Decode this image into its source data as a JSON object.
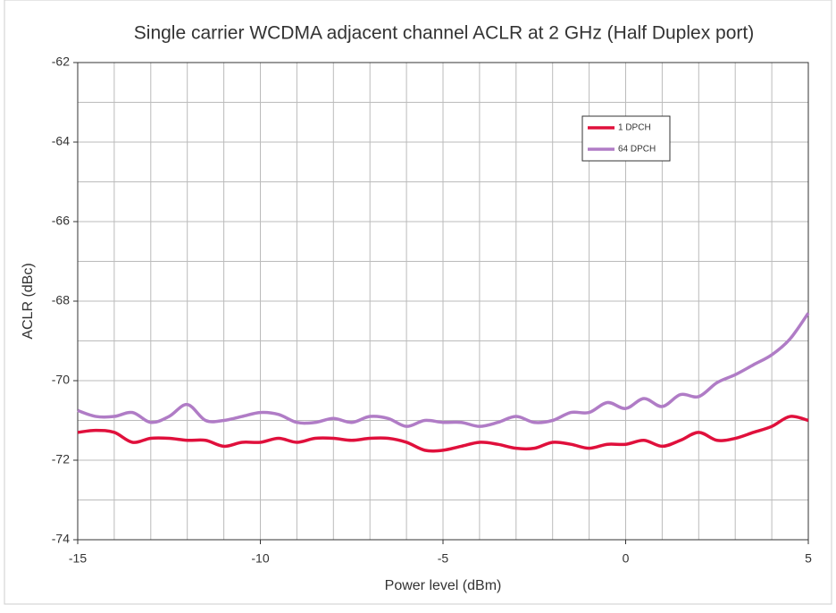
{
  "chart_data": {
    "type": "line",
    "title": "Single carrier WCDMA adjacent channel ACLR at 2 GHz (Half Duplex port)",
    "xlabel": "Power level (dBm)",
    "ylabel": "ACLR (dBc)",
    "x": [
      -15,
      -14.5,
      -14,
      -13.5,
      -13,
      -12.5,
      -12,
      -11.5,
      -11,
      -10.5,
      -10,
      -9.5,
      -9,
      -8.5,
      -8,
      -7.5,
      -7,
      -6.5,
      -6,
      -5.5,
      -5,
      -4.5,
      -4,
      -3.5,
      -3,
      -2.5,
      -2,
      -1.5,
      -1,
      -0.5,
      0,
      0.5,
      1,
      1.5,
      2,
      2.5,
      3,
      3.5,
      4,
      4.5,
      5
    ],
    "series": [
      {
        "name": "1 DPCH",
        "color": "#e0103c",
        "values": [
          -71.3,
          -71.25,
          -71.3,
          -71.55,
          -71.45,
          -71.45,
          -71.5,
          -71.5,
          -71.65,
          -71.55,
          -71.55,
          -71.45,
          -71.55,
          -71.45,
          -71.45,
          -71.5,
          -71.45,
          -71.45,
          -71.55,
          -71.75,
          -71.75,
          -71.65,
          -71.55,
          -71.6,
          -71.7,
          -71.7,
          -71.55,
          -71.6,
          -71.7,
          -71.6,
          -71.6,
          -71.5,
          -71.65,
          -71.5,
          -71.3,
          -71.5,
          -71.45,
          -71.3,
          -71.15,
          -70.9,
          -71.0
        ]
      },
      {
        "name": "64 DPCH",
        "color": "#b07cc6",
        "values": [
          -70.75,
          -70.9,
          -70.9,
          -70.8,
          -71.05,
          -70.9,
          -70.6,
          -71.0,
          -71.0,
          -70.9,
          -70.8,
          -70.85,
          -71.05,
          -71.05,
          -70.95,
          -71.05,
          -70.9,
          -70.95,
          -71.15,
          -71.0,
          -71.05,
          -71.05,
          -71.15,
          -71.05,
          -70.9,
          -71.05,
          -71.0,
          -70.8,
          -70.8,
          -70.55,
          -70.7,
          -70.45,
          -70.65,
          -70.35,
          -70.4,
          -70.05,
          -69.85,
          -69.6,
          -69.35,
          -68.95,
          -68.3
        ]
      }
    ],
    "xlim": [
      -15,
      5
    ],
    "xticks": [
      -15,
      -10,
      -5,
      0,
      5
    ],
    "xgrid": [
      -14,
      -13,
      -12,
      -11,
      -10,
      -9,
      -8,
      -7,
      -6,
      -5,
      -4,
      -3,
      -2,
      -1,
      0,
      1,
      2,
      3,
      4
    ],
    "ylim": [
      -74,
      -62
    ],
    "yticks": [
      -62,
      -64,
      -66,
      -68,
      -70,
      -72,
      -74
    ],
    "ygrid": [
      -63,
      -64,
      -65,
      -66,
      -67,
      -68,
      -69,
      -70,
      -71,
      -72,
      -73
    ],
    "legend": "upper right"
  }
}
